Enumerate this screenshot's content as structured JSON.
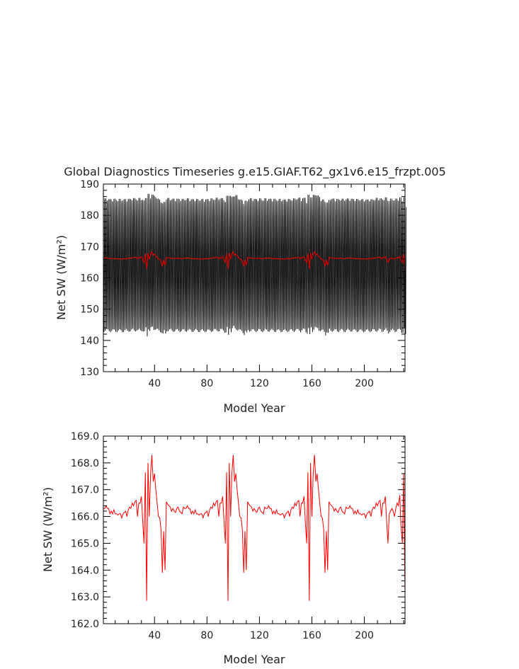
{
  "chart_data": [
    {
      "type": "line",
      "title": "Global Diagnostics Timeseries g.e15.GIAF.T62_gx1v6.e15_frzpt.005",
      "xlabel": "Model Year",
      "ylabel": "Net SW (W/m²)",
      "xlim": [
        1,
        231
      ],
      "ylim": [
        130,
        190
      ],
      "xticks": [
        40,
        80,
        120,
        160,
        200
      ],
      "yticks": [
        "130",
        "140",
        "150",
        "160",
        "170",
        "180",
        "190"
      ],
      "grid": false,
      "series": [
        {
          "color": "#000000",
          "description": "monthly values oscillating annually between roughly 142 and 186",
          "seasonal_min": 142.5,
          "seasonal_max": 185.5,
          "points_per_year": 12
        },
        {
          "color": "#cc0000",
          "description": "annual mean (same as lower panel)"
        }
      ]
    },
    {
      "type": "line",
      "title": "",
      "xlabel": "Model Year",
      "ylabel": "Net SW (W/m²)",
      "xlim": [
        1,
        231
      ],
      "ylim": [
        162.0,
        169.0
      ],
      "xticks": [
        40,
        80,
        120,
        160,
        200
      ],
      "yticks": [
        "162.0",
        "163.0",
        "164.0",
        "165.0",
        "166.0",
        "167.0",
        "168.0",
        "169.0"
      ],
      "grid": false,
      "series": [
        {
          "color": "#ff0000",
          "cycle_length": 62,
          "cycle_values": [
            166.3,
            166.3,
            166.4,
            166.3,
            166.3,
            166.1,
            166.2,
            166.1,
            166.25,
            166.1,
            166.1,
            166.05,
            166.1,
            166.1,
            165.95,
            166.1,
            166.15,
            166.2,
            166.0,
            166.25,
            166.35,
            166.3,
            166.5,
            166.4,
            166.55,
            166.6,
            166.0,
            166.5,
            166.5,
            166.75,
            165.8,
            165.0,
            167.65,
            162.85,
            168.0,
            166.0,
            167.6,
            168.3,
            167.3,
            167.6,
            167.0,
            166.5,
            166.0,
            165.95,
            165.5,
            163.9,
            165.45,
            164.0,
            166.55,
            166.45,
            166.4,
            166.35,
            166.2,
            166.3,
            166.2,
            166.15,
            166.3,
            166.35,
            166.2,
            166.15,
            166.1,
            166.35
          ],
          "tail_values": [
            166.1,
            166.2,
            166.3,
            166.2,
            166.0,
            166.3,
            166.5,
            166.4,
            166.8,
            165.6,
            165.0,
            167.6,
            163.1
          ]
        }
      ]
    }
  ]
}
